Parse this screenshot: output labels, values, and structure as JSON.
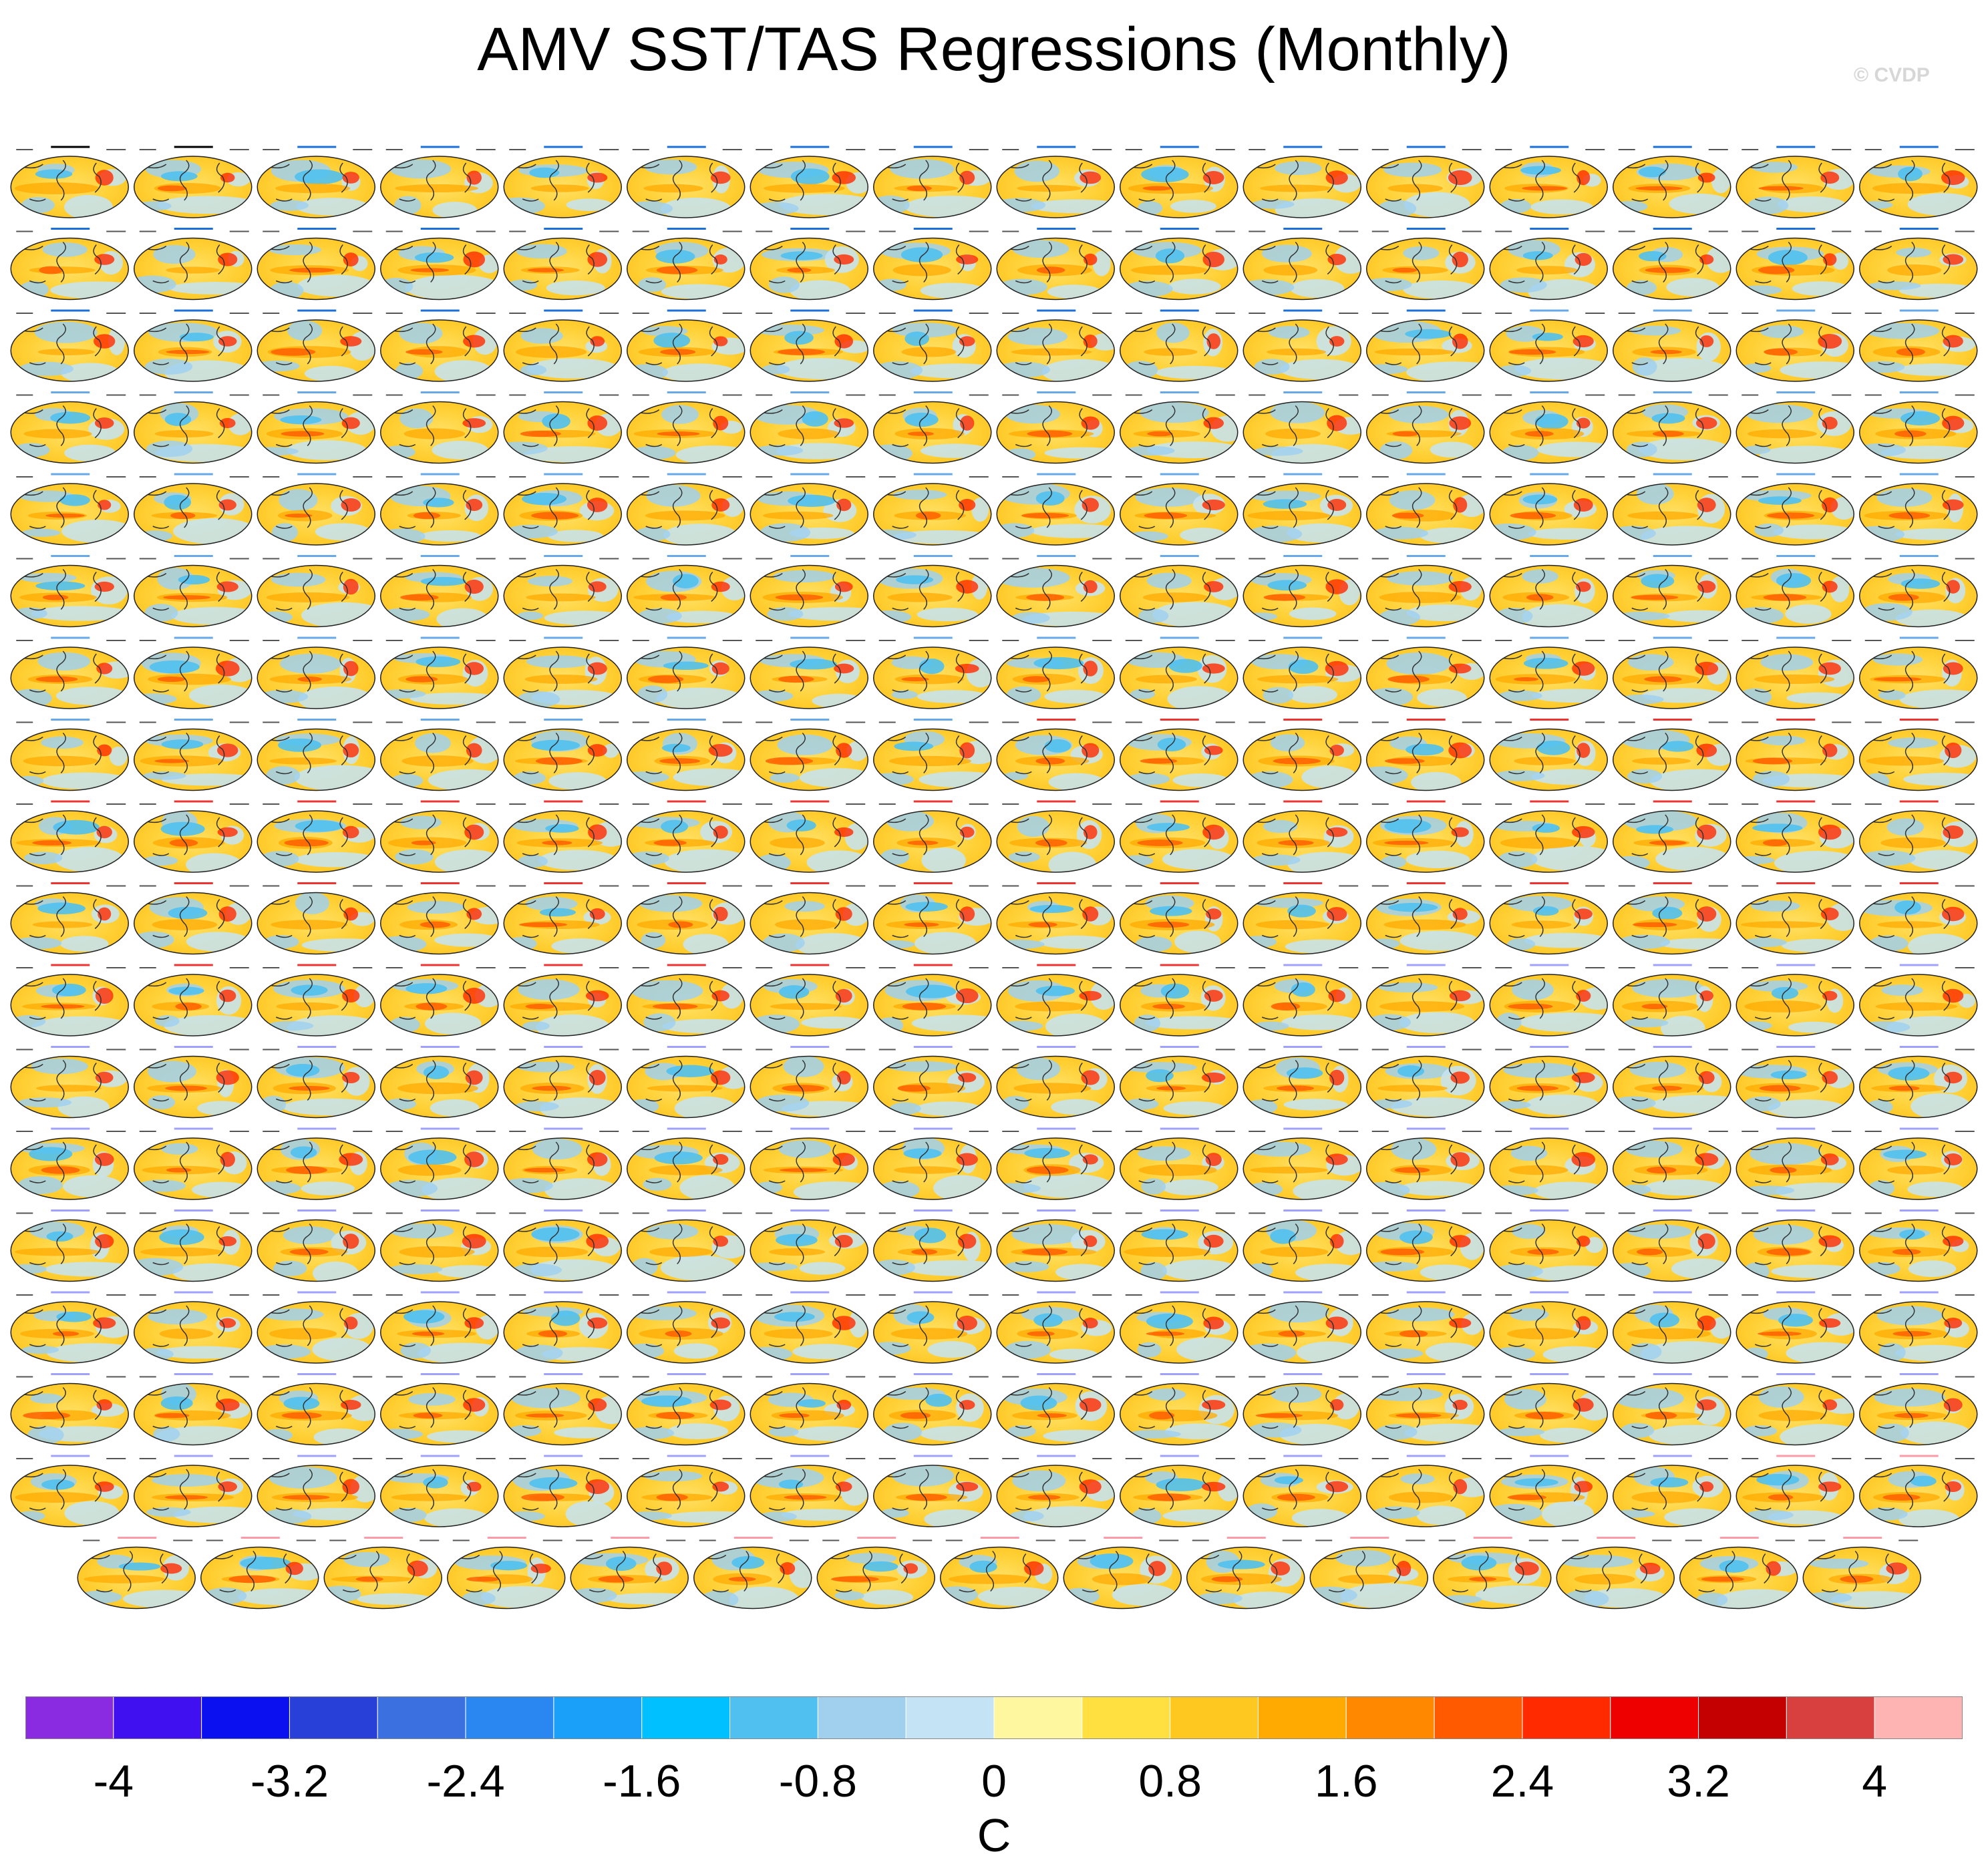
{
  "title": "AMV SST/TAS Regressions (Monthly)",
  "watermark": "© CVDP",
  "chart_data": {
    "type": "heatmap",
    "title": "AMV SST/TAS Regressions (Monthly)",
    "layout": "grid of small global map panels",
    "grid": {
      "rows_full": 17,
      "columns": 16,
      "last_row_panels": 15
    },
    "panel_count": 287,
    "colorbar": {
      "unit": "C",
      "min": -4.4,
      "max": 4.4,
      "interval": 0.4,
      "tick_labels": [
        "-4",
        "-3.2",
        "-2.4",
        "-1.6",
        "-0.8",
        "0",
        "0.8",
        "1.6",
        "2.4",
        "3.2",
        "4"
      ],
      "colors": [
        "#8a2be2",
        "#4010f0",
        "#0a10f0",
        "#2840d8",
        "#3a70e0",
        "#2a86f0",
        "#1aa0f8",
        "#00c0ff",
        "#50c0f0",
        "#a0d0ee",
        "#c4e4f6",
        "#fff6a0",
        "#ffe040",
        "#ffc820",
        "#ffaa00",
        "#ff8800",
        "#ff5a00",
        "#ff2a00",
        "#ee0000",
        "#c40000",
        "#d84040",
        "#ffb4b4"
      ]
    },
    "panel_label_colors": {
      "observations": "#000000",
      "ACCESS-ESM1-5": "#1a6fd8",
      "CanESM5": "#66a8e8",
      "CESM1": "#ee3333",
      "CESM2": "#a0a0ff",
      "CESM2-variant": "#ff9aa8"
    }
  }
}
